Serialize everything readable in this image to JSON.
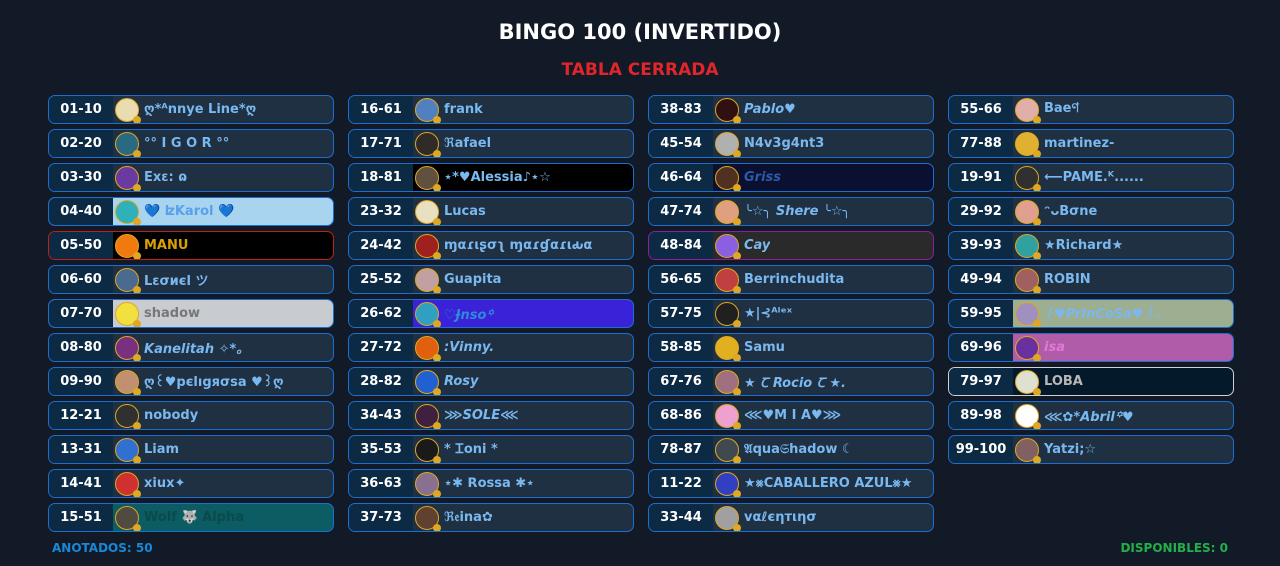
{
  "header": {
    "title": "BINGO 100 (INVERTIDO)",
    "subtitle": "TABLA CERRADA"
  },
  "footer": {
    "anotados": "ANOTADOS: 50",
    "disponibles": "DISPONIBLES: 0"
  },
  "colors": {
    "default_name": "#7ab8f0",
    "border": "#1d6fcf",
    "row_bg": "#1f3042"
  },
  "columns": [
    [
      {
        "num": "01-10",
        "name": "ღ*ᴬnnye Line*ღ",
        "avatar": "#e8dcb0"
      },
      {
        "num": "02-20",
        "name": "°° I G O R °°",
        "avatar": "#2a6a80"
      },
      {
        "num": "03-30",
        "name": "Ēxε: ɷ",
        "avatar": "#6a3aa0"
      },
      {
        "num": "04-40",
        "name": "   💙 ʫKarol 💙",
        "avatar": "#30b0b8",
        "bg": "#a8d4f0",
        "color": "#5aa0e8"
      },
      {
        "num": "05-50",
        "name": "MANU",
        "avatar": "#f07a10",
        "bg": "#000000",
        "border": "#c0201a",
        "color": "#d8a000"
      },
      {
        "num": "06-60",
        "name": "Lεσиєl      ツ",
        "avatar": "#4a6a90"
      },
      {
        "num": "07-70",
        "name": "shadow",
        "avatar": "#f0e040",
        "bg": "#c8cbd0",
        "color": "#777777"
      },
      {
        "num": "08-80",
        "name": "Kanelitah ✧*。",
        "avatar": "#7a3080",
        "italic": true
      },
      {
        "num": "09-90",
        "name": "ღ꒰♥pєlıgяσsa ♥꒱ღ",
        "avatar": "#c09070"
      },
      {
        "num": "12-21",
        "name": "nobody",
        "avatar": "#303030"
      },
      {
        "num": "13-31",
        "name": "Liam",
        "avatar": "#3070d0"
      },
      {
        "num": "14-41",
        "name": "xiux✦",
        "avatar": "#d03030"
      },
      {
        "num": "15-51",
        "name": "Wolf 🐺 Alpha",
        "avatar": "#504a40",
        "bg": "#0b5c63",
        "color": "#0a4a4a"
      }
    ],
    [
      {
        "num": "16-61",
        "name": "frank",
        "avatar": "#5080c0"
      },
      {
        "num": "17-71",
        "name": "ℜafael",
        "avatar": "#302a28"
      },
      {
        "num": "18-81",
        "name": "⋆*♥Alessia♪⋆☆",
        "avatar": "#605040",
        "bg": "#000000"
      },
      {
        "num": "23-32",
        "name": "Lucas",
        "avatar": "#e8e0c0"
      },
      {
        "num": "24-42",
        "name": "ɱαɾιʂσʅ ɱαɾɠαɾιԃα",
        "avatar": "#a02020"
      },
      {
        "num": "25-52",
        "name": "Guapita",
        "avatar": "#c0a0a0"
      },
      {
        "num": "26-62",
        "name": "♡Ɉnso꙳",
        "avatar": "#30a0c0",
        "bg": "#3a22d8",
        "color": "#2f8ad8",
        "italic": true
      },
      {
        "num": "27-72",
        "name": ":Vinny.",
        "avatar": "#e06010",
        "italic": true
      },
      {
        "num": "28-82",
        "name": "Rosy",
        "avatar": "#2060d0",
        "italic": true
      },
      {
        "num": "34-43",
        "name": "⋙SOLE⋘",
        "avatar": "#402040",
        "italic": true
      },
      {
        "num": "35-53",
        "name": "* Ꮖoni *",
        "avatar": "#1a1a1a"
      },
      {
        "num": "36-63",
        "name": "⋆✱ ꓣossa ✱⋆",
        "avatar": "#8a7090"
      },
      {
        "num": "37-73",
        "name": "ℜ𝔢ina✿",
        "avatar": "#604030"
      }
    ],
    [
      {
        "num": "38-83",
        "name": "Pablo♥",
        "avatar": "#301010",
        "italic": true
      },
      {
        "num": "45-54",
        "name": "N4v3g4nt3",
        "avatar": "#b0b0b0"
      },
      {
        "num": "46-64",
        "name": "Griss",
        "avatar": "#503020",
        "bg": "#0b1030",
        "color": "#2a5aa8",
        "italic": true
      },
      {
        "num": "47-74",
        "name": "╰☆╮ Shere ╰☆╮",
        "avatar": "#e0a080",
        "italic": true
      },
      {
        "num": "48-84",
        "name": "Cay",
        "avatar": "#8a60e0",
        "bg": "#2a2a2a",
        "border": "#8a20a0",
        "italic": true
      },
      {
        "num": "56-65",
        "name": "Berrinchudita",
        "avatar": "#c04040"
      },
      {
        "num": "57-75",
        "name": "★|⊰ᴬˡᵉˣ",
        "avatar": "#202020"
      },
      {
        "num": "58-85",
        "name": "Samu",
        "avatar": "#e0b020"
      },
      {
        "num": "67-76",
        "name": "★ Ꞇ Rocio Ꞇ ★.",
        "avatar": "#a07080",
        "italic": true
      },
      {
        "num": "68-86",
        "name": "⋘♥M I A♥⋙",
        "avatar": "#f0a0d0"
      },
      {
        "num": "78-87",
        "name": "𝔄qua𝔖hadow ☾",
        "avatar": "#404850"
      },
      {
        "num": "11-22",
        "name": "★⨳CABALLERO AZUL⨳★",
        "avatar": "#3040c0"
      },
      {
        "num": "33-44",
        "name": "vαℓєηтιησ",
        "avatar": "#a0a0a0"
      }
    ],
    [
      {
        "num": "55-66",
        "name": "Baeণ",
        "avatar": "#e0b0a8"
      },
      {
        "num": "77-88",
        "name": "martinez-",
        "avatar": "#e0b030"
      },
      {
        "num": "19-91",
        "name": "⟵PAME.ᴷ......",
        "avatar": "#303030"
      },
      {
        "num": "29-92",
        "name": "ᵔᴗBσne",
        "avatar": "#e0a090"
      },
      {
        "num": "39-93",
        "name": "★Richard★",
        "avatar": "#30a0a0"
      },
      {
        "num": "49-94",
        "name": "ROBIN",
        "avatar": "#a06060"
      },
      {
        "num": "59-95",
        "name": "꒰♥PrInCeSa♥꒱。",
        "avatar": "#a090c0",
        "bg": "#9eae90",
        "italic": true
      },
      {
        "num": "69-96",
        "name": "isa",
        "avatar": "#6a30a0",
        "bg": "#b05ca8",
        "color": "#e07ad8",
        "italic": true
      },
      {
        "num": "79-97",
        "name": "LOBA",
        "avatar": "#e0e0d0",
        "bg": "#041a2a",
        "border": "#d0d0d0",
        "color": "#b8b8b8"
      },
      {
        "num": "89-98",
        "name": "⋘✿*Abril꙳♥",
        "avatar": "#ffffff",
        "italic": true
      },
      {
        "num": "99-100",
        "name": "Yatzi;☆",
        "avatar": "#806060"
      }
    ]
  ]
}
